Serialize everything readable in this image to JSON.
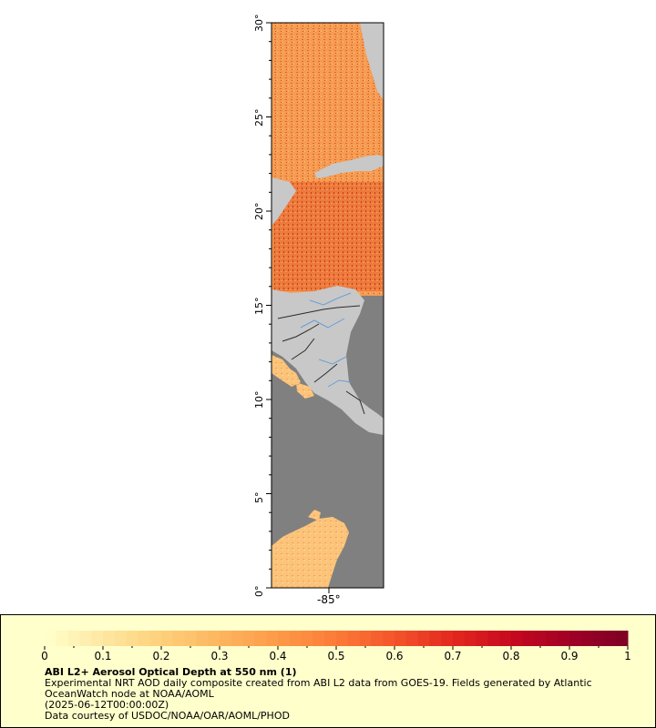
{
  "map": {
    "lat_ticks": [
      "0°",
      "5°",
      "10°",
      "15°",
      "20°",
      "25°",
      "30°"
    ],
    "lon_tick": "-85°",
    "colors": {
      "land": "#c8c8c8",
      "no_data": "#808080",
      "river": "#6a9fd4",
      "border": "#2b2b2b"
    }
  },
  "legend": {
    "title": "ABI L2+ Aerosol Optical Depth at 550 nm (1)",
    "description": "Experimental NRT AOD daily composite created from ABI L2 data from GOES-19. Fields generated by Atlantic OceanWatch node at NOAA/AOML",
    "time": "(2025-06-12T00:00:00Z)",
    "credit": "Data courtesy of USDOC/NOAA/OAR/AOML/PHOD",
    "tick_labels": [
      "0",
      "0.1",
      "0.2",
      "0.3",
      "0.4",
      "0.5",
      "0.6",
      "0.7",
      "0.8",
      "0.9",
      "1"
    ],
    "colorbar_stops": [
      "#ffffcc",
      "#fee7a2",
      "#fed07a",
      "#fdb55f",
      "#fd9a48",
      "#fc7b37",
      "#f4542a",
      "#e3281f",
      "#c7091f",
      "#a00026",
      "#7e0026"
    ]
  }
}
